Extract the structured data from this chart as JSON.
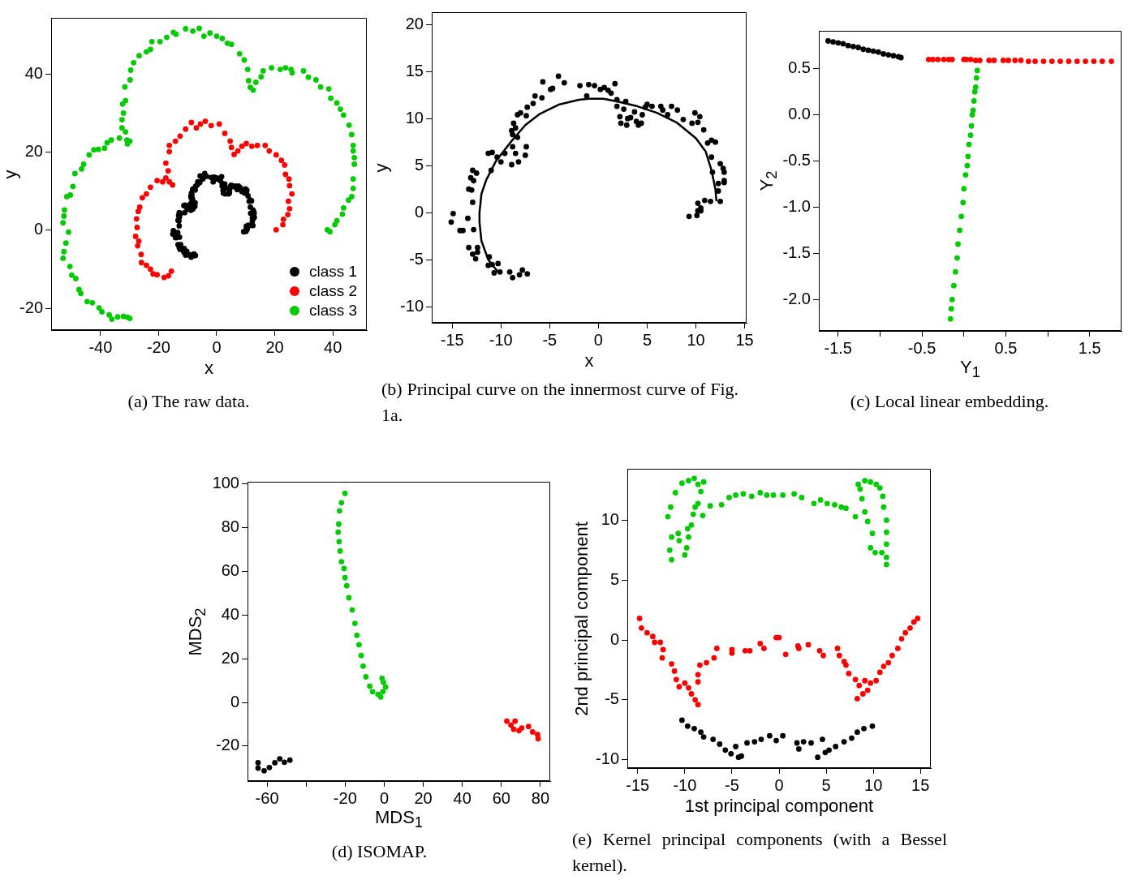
{
  "chart_data": [
    {
      "type": "scatter",
      "title": "(a) The raw data.",
      "xlabel": "x",
      "ylabel": "y",
      "xlim": [
        -57,
        51.7
      ],
      "ylim": [
        -25.6,
        54.4
      ],
      "xticks": [
        -40,
        -20,
        0,
        20,
        40
      ],
      "yticks": [
        -20,
        0,
        20,
        40
      ],
      "marker": "circle",
      "legend": "bottom right",
      "series": [
        {
          "name": "class 1",
          "color": "#000000",
          "x": [
            -15.1,
            -14.9,
            -14.2,
            -13.9,
            -13.4,
            -12.8,
            -12.9,
            -13.3,
            -13.0,
            -13.1,
            -12.9,
            -12.5,
            -12.8,
            -13.3,
            -12.9,
            -12.6,
            -12.4,
            -12.4,
            -11.2,
            -11.3,
            -10.7,
            -10.3,
            -10.1,
            -9.1,
            -8.8,
            -8.1,
            -7.8,
            -7.3,
            -11.0,
            -11.3,
            -10.9,
            -10.4,
            -10.0,
            -9.6,
            -8.9,
            -8.5,
            -8.2,
            -7.4,
            -7.5,
            -8.8,
            -8.8,
            -8.9,
            -8.7,
            -8.3,
            -8.5,
            -8.3,
            -8.0,
            -7.4,
            -7.3,
            -6.7,
            -6.5,
            -5.8,
            -5.7,
            -4.9,
            -4.7,
            -4.1,
            -3.5,
            -1.9,
            -1.2,
            -1.0,
            -0.4,
            0.2,
            0.6,
            1.3,
            1.7,
            1.9,
            1.9,
            2.2,
            2.3,
            2.6,
            2.8,
            2.9,
            3.7,
            4.1,
            4.4,
            4.5,
            4.8,
            5.0,
            5.5,
            6.4,
            6.6,
            7.1,
            7.5,
            8.1,
            8.7,
            9.6,
            9.9,
            10.2,
            10.4,
            10.8,
            11.2,
            11.6,
            12.0,
            11.6,
            11.7,
            12.5,
            12.8,
            12.9,
            12.3,
            12.9,
            12.9,
            12.3,
            12.5,
            11.5,
            10.9,
            10.2,
            10.5,
            10.2,
            10.1,
            10.5,
            9.3
          ],
          "values": [
            -1.0,
            -0.1,
            -1.9,
            -1.9,
            -0.6,
            -1.8,
            1.1,
            2.5,
            2.4,
            3.7,
            4.5,
            4.2,
            3.4,
            -3.7,
            -4.4,
            -4.9,
            -3.7,
            -4.2,
            -4.7,
            -5.6,
            -6.4,
            -5.4,
            -6.3,
            -6.3,
            -6.9,
            -6.6,
            -6.1,
            -6.5,
            4.5,
            6.3,
            6.4,
            5.9,
            5.4,
            6.3,
            5.1,
            6.3,
            5.4,
            7.0,
            6.1,
            7.0,
            8.3,
            8.7,
            9.5,
            8.0,
            9.0,
            10.4,
            10.6,
            10.3,
            11.2,
            11.6,
            12.4,
            12.2,
            13.9,
            13.1,
            13.2,
            14.5,
            13.8,
            13.5,
            12.4,
            13.6,
            13.5,
            13.1,
            13.3,
            12.7,
            13.7,
            12.0,
            11.3,
            10.2,
            9.5,
            11.0,
            11.8,
            9.3,
            10.7,
            9.3,
            9.5,
            10.4,
            11.2,
            11.5,
            11.3,
            11.3,
            10.9,
            10.4,
            11.3,
            10.9,
            9.9,
            9.5,
            10.6,
            9.6,
            10.2,
            8.8,
            7.4,
            7.7,
            7.5,
            5.9,
            4.3,
            5.2,
            4.7,
            4.3,
            3.1,
            3.4,
            3.2,
            2.3,
            1.2,
            1.2,
            1.3,
            1.0,
            0.5,
            0.2,
            -0.3,
            0.2,
            -0.4
          ]
        },
        {
          "name": "class 2",
          "color": "#ff0000",
          "x": [
            20.5,
            22.8,
            23,
            24.5,
            25.1,
            24.7,
            25.9,
            25.1,
            24.9,
            23.7,
            23.4,
            22.3,
            20.5,
            18.1,
            16.7,
            14,
            12.1,
            10.2,
            8.7,
            7.3,
            6,
            5.1,
            4.65,
            2.8,
            0.9,
            -1.9,
            -3.9,
            -5.6,
            -7,
            -8.7,
            -10.7,
            -12.6,
            -14.2,
            -16.3,
            -16.3,
            -17.5,
            -16.7,
            -17.5,
            -16.3,
            -15.2,
            -18.6,
            -20.5,
            -22.8,
            -24.2,
            -25.6,
            -26.5,
            -27,
            -27.6,
            -27.4,
            -27.9,
            -26.8,
            -27.2,
            -26,
            -25.9,
            -24.2,
            -22.8,
            -21.9,
            -20.5,
            -18.1,
            -16.6,
            -15.6
          ],
          "values": [
            0.1,
            1.4,
            2.8,
            4,
            5.5,
            7.4,
            9.3,
            11.4,
            13.1,
            14.3,
            16.7,
            17.9,
            19.3,
            20.3,
            21.7,
            21.7,
            21.5,
            22.2,
            21.5,
            20.3,
            19.4,
            21.2,
            22.8,
            24.8,
            27.2,
            26.8,
            27.9,
            27.2,
            26.2,
            27.6,
            25.9,
            24.1,
            22.8,
            21.7,
            20.1,
            17.2,
            15.2,
            13.4,
            12.4,
            11.6,
            12.4,
            12.7,
            11,
            9.3,
            8.3,
            5.9,
            4.8,
            2.9,
            0.7,
            -1.6,
            -2.8,
            -4,
            -6.2,
            -8.3,
            -9,
            -10,
            -11.2,
            -11.4,
            -12.1,
            -11.7,
            -10.5
          ]
        },
        {
          "name": "class 3",
          "color": "#00cc00",
          "x": [
            38.1,
            39,
            40.7,
            41.4,
            43.3,
            43.7,
            45.4,
            46.5,
            47,
            47,
            47.4,
            47.4,
            47,
            47,
            46.5,
            45.6,
            43.7,
            42.6,
            41.4,
            39.3,
            38.6,
            35.8,
            34.2,
            31.6,
            29.9,
            26,
            25.6,
            23.7,
            21.9,
            18.9,
            16,
            15.3,
            13.5,
            12.6,
            11.6,
            11,
            10.7,
            9.5,
            7.9,
            5.1,
            3.7,
            1.9,
            0,
            -2.3,
            -4.4,
            -6,
            -8.2,
            -10.7,
            -14,
            -14.9,
            -17.2,
            -19.5,
            -22.3,
            -22.8,
            -24.2,
            -26.7,
            -28.6,
            -29.6,
            -29.8,
            -31.6,
            -31.4,
            -32.4,
            -32.1,
            -32.6,
            -32.6,
            -31.4,
            -30.9,
            -29.9,
            -30.7,
            -33.5,
            -36.3,
            -37.7,
            -38.6,
            -40.7,
            -42.3,
            -43.9,
            -45.8,
            -46.5,
            -48.8,
            -49.5,
            -50.4,
            -51.6,
            -52.4,
            -52.6,
            -52.9,
            -51,
            -51.9,
            -52.6,
            -52.9,
            -50.5,
            -49.9,
            -48.5,
            -47.4,
            -46.8,
            -44.6,
            -42.8,
            -40.5,
            -39.5,
            -37,
            -36.1,
            -34.1,
            -32.1,
            -30.7,
            -29.9
          ],
          "values": [
            0.1,
            -0.4,
            1.4,
            2.4,
            4.1,
            5.7,
            7.7,
            8.6,
            10.7,
            13.1,
            16.9,
            18.6,
            20.3,
            21.7,
            24.5,
            26.9,
            29.5,
            31,
            32.6,
            33.8,
            36.2,
            36.7,
            38.5,
            39.2,
            40.8,
            40.3,
            41.2,
            41.6,
            41.2,
            41.6,
            40.8,
            39.3,
            37.9,
            35.9,
            36.6,
            38.3,
            41.2,
            43.6,
            45.2,
            47.6,
            47.9,
            49.1,
            49.7,
            50.5,
            49.7,
            51.7,
            51,
            51.6,
            50.2,
            50.7,
            49.4,
            48.3,
            48.3,
            46.3,
            45.7,
            44.7,
            42.9,
            41,
            38.5,
            36.7,
            33.2,
            32.3,
            30,
            28.3,
            26.2,
            25.2,
            23.1,
            22.8,
            22.1,
            23.6,
            23.1,
            22.4,
            21,
            20.7,
            20.6,
            19.3,
            16.9,
            15.7,
            14.5,
            11.2,
            9,
            8.6,
            5.2,
            3.6,
            1.9,
            -0.5,
            -3.3,
            -5.5,
            -7.2,
            -9.3,
            -11.5,
            -12.4,
            -15.2,
            -16.2,
            -18.3,
            -18.6,
            -19.9,
            -20.9,
            -21.7,
            -22.8,
            -22.2,
            -22.1,
            -22.3,
            -22.6
          ]
        }
      ]
    },
    {
      "type": "scatter",
      "title": "(b) Principal curve on the innermost curve of Fig. 1a.",
      "xlabel": "x",
      "ylabel": "y",
      "xlim": [
        -17.1,
        15.2
      ],
      "ylim": [
        -11.7,
        21.3
      ],
      "xticks": [
        -15,
        -10,
        -5,
        0,
        5,
        10,
        15
      ],
      "yticks": [
        -10,
        -5,
        0,
        5,
        10,
        15,
        20
      ],
      "marker": "circle",
      "series": [
        {
          "color": "#000000",
          "x": [
            -15.1,
            -14.9,
            -14.2,
            -13.9,
            -13.4,
            -12.8,
            -12.9,
            -13.3,
            -13.0,
            -13.1,
            -12.9,
            -12.5,
            -12.8,
            -13.3,
            -12.9,
            -12.6,
            -12.4,
            -12.4,
            -11.2,
            -11.3,
            -10.9,
            -10.7,
            -10.3,
            -10.1,
            -9.1,
            -8.8,
            -8.1,
            -7.8,
            -7.3,
            -11.0,
            -11.3,
            -10.9,
            -10.4,
            -10.0,
            -9.6,
            -8.9,
            -8.5,
            -8.2,
            -7.4,
            -7.5,
            -8.8,
            -8.8,
            -8.9,
            -8.7,
            -8.3,
            -8.5,
            -8.3,
            -8.0,
            -7.4,
            -7.3,
            -6.7,
            -6.5,
            -5.8,
            -5.7,
            -4.9,
            -4.7,
            -4.1,
            -3.5,
            -1.9,
            -1.2,
            -1.0,
            -0.4,
            0.2,
            0.6,
            1.0,
            1.3,
            1.7,
            1.9,
            1.9,
            2.2,
            2.3,
            2.6,
            2.8,
            3.0,
            2.9,
            3.3,
            3.7,
            3.9,
            4.1,
            4.4,
            4.5,
            4.8,
            5.0,
            5.5,
            6.4,
            6.6,
            7.1,
            7.5,
            8.1,
            8.7,
            9.6,
            9.9,
            10.2,
            10.4,
            10.8,
            11.2,
            11.6,
            12.0,
            11.6,
            11.7,
            12.5,
            12.8,
            12.9,
            12.3,
            12.9,
            12.9,
            12.3,
            12.5,
            11.5,
            10.9,
            10.2,
            10.5,
            10.2,
            10.1,
            10.5,
            9.3
          ],
          "values": [
            -1.0,
            -0.1,
            -1.9,
            -1.9,
            -0.6,
            -1.8,
            1.1,
            2.5,
            2.4,
            3.7,
            4.5,
            4.2,
            3.4,
            -3.7,
            -4.4,
            -4.9,
            -3.7,
            -4.2,
            -4.7,
            -5.6,
            -5.5,
            -6.4,
            -5.4,
            -6.3,
            -6.3,
            -6.9,
            -6.6,
            -6.1,
            -6.5,
            4.5,
            6.3,
            6.4,
            5.9,
            5.4,
            6.3,
            5.1,
            6.3,
            5.4,
            7.0,
            6.1,
            7.0,
            8.3,
            8.7,
            9.5,
            8.0,
            9.0,
            10.4,
            10.6,
            10.3,
            11.2,
            11.6,
            12.4,
            12.2,
            13.9,
            13.1,
            13.2,
            14.5,
            13.8,
            13.5,
            12.4,
            13.6,
            13.5,
            13.1,
            13.3,
            13.0,
            12.7,
            13.7,
            12.0,
            11.3,
            10.2,
            9.5,
            11.0,
            11.8,
            10.0,
            9.3,
            10.1,
            10.7,
            9.7,
            9.3,
            9.5,
            10.4,
            11.2,
            11.5,
            11.3,
            11.3,
            10.9,
            10.4,
            11.3,
            10.9,
            9.9,
            9.5,
            10.6,
            9.6,
            10.2,
            8.8,
            7.4,
            7.7,
            7.5,
            5.9,
            4.3,
            5.2,
            4.7,
            4.3,
            3.1,
            3.4,
            3.2,
            2.3,
            1.2,
            1.2,
            1.3,
            1.0,
            0.5,
            0.2,
            -0.3,
            0.2,
            -0.4
          ]
        },
        {
          "type": "line",
          "marker": "none",
          "color": "#000000",
          "x": [
            -10.3,
            -11.3,
            -12,
            -12.2,
            -12.2,
            -12,
            -11.5,
            -10.5,
            -9,
            -7.5,
            -6,
            -4,
            -2,
            -1,
            0.5,
            2,
            4,
            6,
            8,
            10,
            11,
            11.6,
            12,
            12.1
          ],
          "values": [
            -6.3,
            -5,
            -3,
            -1,
            0,
            2,
            3.5,
            5.5,
            7.5,
            9.3,
            10.5,
            11.5,
            12,
            12.1,
            12.1,
            11.8,
            11.3,
            10.6,
            9.6,
            7.9,
            6.5,
            4.5,
            2.5,
            1.3
          ]
        }
      ]
    },
    {
      "type": "scatter",
      "title": "(c) Local linear embedding.",
      "xlabel": "Y$_{1}$",
      "ylabel": "Y$_{2}$",
      "xlim": [
        -1.73,
        1.88
      ],
      "ylim": [
        -2.34,
        0.91
      ],
      "xticks": [
        -1.5,
        {
          "value": -1,
          "label": null
        },
        -0.5,
        {
          "value": 0,
          "label": null
        },
        0.5,
        {
          "value": 1,
          "label": null
        },
        1.5
      ],
      "yticks": [
        {
          "value": -2,
          "label": "-2.0"
        },
        -1.5,
        {
          "value": -1,
          "label": "-1.0"
        },
        -0.5,
        {
          "value": 0,
          "label": "0.0"
        },
        0.5
      ],
      "marker": "circle",
      "series": [
        {
          "color": "#000000",
          "x": [
            -1.62,
            -1.56,
            -1.5,
            -1.44,
            -1.38,
            -1.32,
            -1.26,
            -1.2,
            -1.14,
            -1.08,
            -1.02,
            -0.96,
            -0.9,
            -0.84,
            -0.78,
            -0.75
          ],
          "values": [
            0.8,
            0.79,
            0.78,
            0.77,
            0.75,
            0.74,
            0.73,
            0.71,
            0.7,
            0.69,
            0.68,
            0.66,
            0.65,
            0.64,
            0.63,
            0.62
          ]
        },
        {
          "color": "#ff0000",
          "x": [
            -0.42,
            -0.37,
            -0.31,
            -0.24,
            -0.18,
            -0.14,
            0.0,
            0.03,
            0.08,
            0.14,
            0.19,
            0.3,
            0.36,
            0.47,
            0.53,
            0.61,
            0.68,
            0.77,
            0.85,
            0.95,
            1.05,
            1.15,
            1.25,
            1.35,
            1.45,
            1.55,
            1.65,
            1.76
          ],
          "values": [
            0.6,
            0.6,
            0.6,
            0.6,
            0.6,
            0.6,
            0.6,
            0.6,
            0.6,
            0.59,
            0.59,
            0.59,
            0.59,
            0.59,
            0.59,
            0.59,
            0.59,
            0.58,
            0.58,
            0.58,
            0.58,
            0.58,
            0.58,
            0.58,
            0.58,
            0.58,
            0.58,
            0.58
          ]
        },
        {
          "color": "#00cc00",
          "x": [
            0.16,
            0.15,
            0.14,
            0.13,
            0.12,
            0.11,
            0.1,
            0.09,
            0.08,
            0.06,
            0.05,
            0.04,
            0.02,
            0.0,
            -0.01,
            -0.03,
            -0.05,
            -0.07,
            -0.08,
            -0.1,
            -0.12,
            -0.14,
            -0.15,
            -0.16
          ],
          "values": [
            0.48,
            0.4,
            0.3,
            0.25,
            0.15,
            0.05,
            0.0,
            -0.12,
            -0.22,
            -0.32,
            -0.45,
            -0.55,
            -0.65,
            -0.8,
            -0.95,
            -1.1,
            -1.25,
            -1.4,
            -1.55,
            -1.7,
            -1.85,
            -2.0,
            -2.1,
            -2.21
          ]
        }
      ]
    },
    {
      "type": "scatter",
      "title": "(d) ISOMAP.",
      "xlabel": "MDS$_{1}$",
      "ylabel": "MDS$_{2}$",
      "xlim": [
        -70,
        85
      ],
      "ylim": [
        -36,
        101
      ],
      "xticks": [
        -60,
        {
          "value": -40,
          "label": null
        },
        -20,
        0,
        20,
        40,
        60,
        80
      ],
      "yticks": [
        -20,
        0,
        20,
        40,
        60,
        80,
        100
      ],
      "marker": "circle",
      "series": [
        {
          "color": "#000000",
          "x": [
            -64.6,
            -64.6,
            -61.5,
            -58.8,
            -56,
            -53.5,
            -51.1,
            -48.3
          ],
          "values": [
            -27.6,
            -30.1,
            -31.3,
            -29.8,
            -27.6,
            -25.8,
            -27.4,
            -26.4
          ]
        },
        {
          "color": "#ff0000",
          "x": [
            62.8,
            67,
            66.3,
            70.4,
            73.9,
            76,
            78.5,
            78.8,
            69,
            64.9
          ],
          "values": [
            -8.6,
            -8.6,
            -12.3,
            -11.7,
            -11,
            -13.5,
            -14.7,
            -16.6,
            -12.9,
            -10.4
          ]
        },
        {
          "color": "#00cc00",
          "x": [
            -20.1,
            -21.9,
            -22.9,
            -23.3,
            -23.6,
            -23.1,
            -22.6,
            -21.9,
            -20.6,
            -20.1,
            -19.2,
            -18.1,
            -16.4,
            -15,
            -14,
            -12.9,
            -11.8,
            -10.8,
            -9.4,
            -7.4,
            -6,
            -3.2,
            -1.8,
            -0.7,
            -0.4,
            0.7,
            -1.1
          ],
          "values": [
            95.7,
            91.4,
            87.7,
            81.6,
            77.9,
            73.6,
            69.3,
            64.4,
            61.3,
            57.1,
            53.4,
            47.9,
            42.3,
            36.2,
            30.7,
            26.4,
            21.5,
            16.6,
            11.7,
            7.4,
            4.9,
            3.7,
            2.5,
            4.9,
            9.2,
            7.0,
            11.0
          ]
        }
      ]
    },
    {
      "type": "scatter",
      "title": "(e) Kernel principal components (with a Bessel kernel).",
      "xlabel": "1st principal component",
      "ylabel": "2nd principal component",
      "xlim": [
        -16.1,
        16.1
      ],
      "ylim": [
        -10.7,
        14.3
      ],
      "xticks": [
        -15,
        -10,
        -5,
        0,
        5,
        10,
        15
      ],
      "yticks": [
        -10,
        -5,
        0,
        5,
        10
      ],
      "marker": "circle",
      "series": [
        {
          "color": "#000000",
          "x": [
            -10.3,
            -9.7,
            -9,
            -8.3,
            -8,
            -7,
            -6.3,
            -5.7,
            -5.1,
            -4.3,
            -4,
            -4.6,
            -3.4,
            -2.6,
            -1.9,
            -1,
            -0.3,
            0.4,
            1.9,
            2.1,
            2.6,
            3.4,
            4.6,
            4.1,
            4.9,
            5.3,
            6,
            6.9,
            7.7,
            8.3,
            9,
            9.9
          ],
          "values": [
            -6.7,
            -7.2,
            -7.4,
            -7.7,
            -8.1,
            -8.3,
            -8.7,
            -9.2,
            -9.5,
            -9.8,
            -9.7,
            -8.9,
            -8.6,
            -8.5,
            -8.3,
            -8.0,
            -8.4,
            -8.0,
            -8.6,
            -9.1,
            -8.5,
            -8.6,
            -8.3,
            -9.8,
            -9.4,
            -9.2,
            -8.9,
            -8.5,
            -8.2,
            -7.7,
            -7.4,
            -7.2
          ]
        },
        {
          "color": "#ff0000",
          "x": [
            -14.8,
            -14.6,
            -14,
            -13.4,
            -13.2,
            -12.6,
            -12.3,
            -12.4,
            -11.4,
            -11.1,
            -10.9,
            -10.6,
            -10,
            -9.6,
            -9.3,
            -8.9,
            -8.6,
            -8.6,
            -8.6,
            -8.4,
            -7.7,
            -6.9,
            -6.6,
            -5,
            -5,
            -3.6,
            -3.1,
            -2,
            -1.6,
            -0.3,
            0,
            0.7,
            2,
            2.1,
            3.1,
            4.3,
            4.7,
            6.2,
            6.4,
            6.9,
            7.1,
            7.4,
            8.1,
            8.5,
            8.3,
            8.9,
            9.1,
            9.4,
            9.7,
            10.3,
            10.7,
            11.1,
            11.6,
            12,
            12.6,
            13,
            13.4,
            13.9,
            14.3,
            14.7
          ],
          "values": [
            1.8,
            1.0,
            0.6,
            0.3,
            -0.2,
            -0.2,
            -0.8,
            -1.5,
            -2,
            -2.6,
            -3.3,
            -3.9,
            -3.6,
            -4.0,
            -4.5,
            -5.0,
            -5.4,
            -3.5,
            -2.9,
            -2.1,
            -1.9,
            -1.5,
            -0.7,
            -1.1,
            -0.8,
            -0.9,
            -0.9,
            -0.3,
            -0.7,
            0.2,
            0.2,
            -1.2,
            -0.5,
            -0.7,
            -0.4,
            -0.9,
            -1.3,
            -0.7,
            -1.3,
            -1.8,
            -2.1,
            -2.8,
            -3.3,
            -3.8,
            -4.9,
            -4.5,
            -3.4,
            -4.2,
            -3.6,
            -3.4,
            -2.7,
            -2.2,
            -1.9,
            -1.3,
            -0.7,
            0.1,
            0.6,
            1.0,
            1.5,
            1.8
          ]
        },
        {
          "color": "#00cc00",
          "x": [
            -11.4,
            -11.6,
            -11.4,
            -11.8,
            -11.5,
            -11,
            -10.3,
            -9.6,
            -9,
            -8.6,
            -8,
            -8.3,
            -8.6,
            -8.9,
            -9.1,
            -8.1,
            -9.3,
            -9.7,
            -9.6,
            -9.8,
            -10,
            -10.7,
            -10.6,
            -7.3,
            -6.1,
            -5.3,
            -4.6,
            -3.8,
            -2.9,
            -2,
            -1.3,
            -0.6,
            0.4,
            1.6,
            2.4,
            3.7,
            4.4,
            5.1,
            5.9,
            6.6,
            7.1,
            8.1,
            8.4,
            9.1,
            9.7,
            10.3,
            10.7,
            11,
            11.1,
            11.4,
            11.4,
            11.4,
            11.4,
            11.4,
            10.9,
            10.2,
            9.7,
            9.9,
            9.4,
            9.1,
            8.8,
            8.6
          ],
          "values": [
            6.7,
            7.5,
            8.6,
            10.3,
            11.1,
            12.3,
            13.1,
            13.3,
            13.5,
            13.0,
            13.2,
            12.4,
            11.4,
            11.1,
            10.5,
            10.4,
            9.6,
            9.3,
            8.6,
            7.7,
            7.1,
            8.9,
            8.3,
            11.2,
            11.3,
            11.9,
            12.1,
            12.2,
            12.0,
            12.3,
            12.1,
            12.1,
            12.1,
            12.2,
            11.9,
            11.4,
            11.7,
            11.4,
            11.3,
            11.1,
            11.0,
            10.3,
            13.0,
            13.3,
            13.2,
            13.0,
            12.7,
            12.0,
            11.1,
            10.0,
            9.0,
            8.0,
            6.9,
            6.3,
            7.3,
            7.3,
            7.7,
            8.9,
            9.9,
            10.7,
            11.8,
            12.6
          ]
        }
      ]
    }
  ]
}
